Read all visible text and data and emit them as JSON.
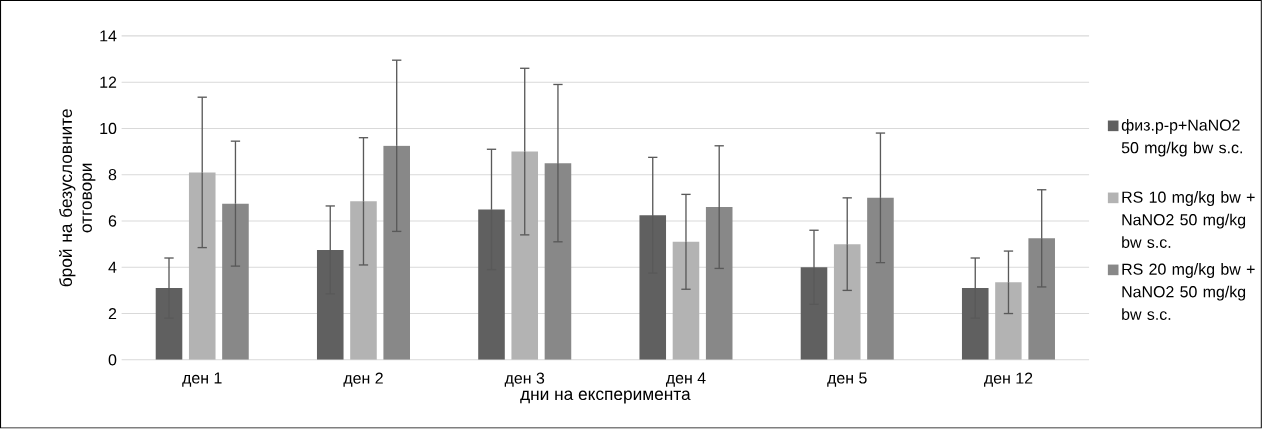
{
  "chart_data": {
    "type": "bar",
    "xlabel": "дни на експеримента",
    "ylabel": "брой на безусловните отговори",
    "categories": [
      "ден 1",
      "ден 2",
      "ден 3",
      "ден 4",
      "ден 5",
      "ден 12"
    ],
    "series": [
      {
        "name": "физ.р-р+NaNO2 50 mg/kg bw s.c.",
        "color": "#606060",
        "values": [
          3.1,
          4.75,
          6.5,
          6.25,
          4.0,
          3.1
        ],
        "errors": [
          1.3,
          1.9,
          2.6,
          2.5,
          1.6,
          1.3
        ]
      },
      {
        "name": "RS 10 mg/kg bw + NaNO2 50 mg/kg bw s.c.",
        "color": "#b3b3b3",
        "values": [
          8.1,
          6.85,
          9.0,
          5.1,
          5.0,
          3.35
        ],
        "errors": [
          3.25,
          2.75,
          3.6,
          2.05,
          2.0,
          1.35
        ]
      },
      {
        "name": "RS 20 mg/kg bw + NaNO2 50 mg/kg bw s.c.",
        "color": "#888888",
        "values": [
          6.75,
          9.25,
          8.5,
          6.6,
          7.0,
          5.25
        ],
        "errors": [
          2.7,
          3.7,
          3.4,
          2.65,
          2.8,
          2.1
        ]
      }
    ],
    "ylim": [
      0,
      14
    ],
    "yticks": [
      0,
      2,
      4,
      6,
      8,
      10,
      12,
      14
    ],
    "grid": "y",
    "legend": "right"
  }
}
